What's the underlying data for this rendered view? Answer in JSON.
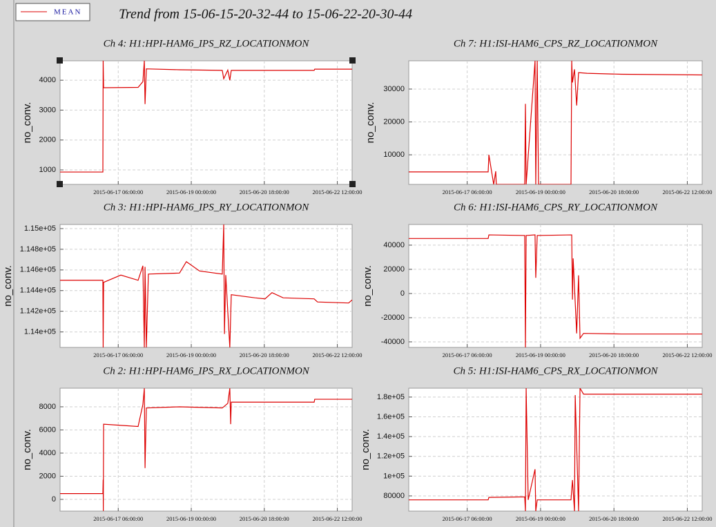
{
  "title": "Trend from 15-06-15-20-32-44 to 15-06-22-20-30-44",
  "legend": "MEAN",
  "chart_data": [
    {
      "type": "line",
      "title": "Ch 4: H1:HPI-HAM6_IPS_RZ_LOCATIONMON",
      "ylabel": "no_conv.",
      "color": "#dd0000",
      "grid": true,
      "xlim": [
        "2015-06-15 20:32:44",
        "2015-06-22 20:30:44"
      ],
      "xticks": [
        "2015-06-17 06:00:00",
        "2015-06-19 00:00:00",
        "2015-06-20 18:00:00",
        "2015-06-22 12:00:00"
      ],
      "ylim": [
        515,
        4650
      ],
      "yticks": [
        1000,
        2000,
        3000,
        4000
      ],
      "x": [
        "2015-06-15 20:33:00",
        "2015-06-16 21:10:00",
        "2015-06-16 21:20:00",
        "2015-06-16 21:35:00",
        "2015-06-17 17:25:00",
        "2015-06-17 20:10:00",
        "2015-06-17 21:00:00",
        "2015-06-17 21:25:00",
        "2015-06-17 22:10:00",
        "2015-06-18 17:15:00",
        "2015-06-19 17:50:00",
        "2015-06-19 18:40:00",
        "2015-06-19 21:00:00",
        "2015-06-19 22:10:00",
        "2015-06-19 23:00:00",
        "2015-06-21 22:40:00",
        "2015-06-21 23:00:00",
        "2015-06-22 20:30:00"
      ],
      "values": [
        930,
        930,
        4650,
        3750,
        3760,
        3950,
        4650,
        3200,
        4380,
        4350,
        4330,
        4050,
        4340,
        4000,
        4330,
        4330,
        4370,
        4370
      ]
    },
    {
      "type": "line",
      "title": "Ch 7: H1:ISI-HAM6_CPS_RZ_LOCATIONMON",
      "ylabel": "no_conv.",
      "color": "#dd0000",
      "grid": true,
      "xlim": [
        "2015-06-15 20:32:44",
        "2015-06-22 20:30:44"
      ],
      "xticks": [
        "2015-06-17 06:00:00",
        "2015-06-19 00:00:00",
        "2015-06-20 18:00:00",
        "2015-06-22 12:00:00"
      ],
      "ylim": [
        1000,
        38600
      ],
      "yticks": [
        10000,
        20000,
        30000
      ],
      "x": [
        "2015-06-15 20:33:00",
        "2015-06-17 18:00:00",
        "2015-06-17 18:25:00",
        "2015-06-17 21:10:00",
        "2015-06-17 22:20:00",
        "2015-06-17 22:40:00",
        "2015-06-18 14:55:00",
        "2015-06-18 15:20:00",
        "2015-06-18 15:45:00",
        "2015-06-18 20:50:00",
        "2015-06-18 21:15:00",
        "2015-06-18 22:05:00",
        "2015-06-18 22:50:00",
        "2015-06-19 17:25:00",
        "2015-06-19 17:50:00",
        "2015-06-19 18:15:00",
        "2015-06-19 19:25:00",
        "2015-06-19 20:40:00",
        "2015-06-19 21:45:00",
        "2015-06-20 02:35:00",
        "2015-06-20 22:20:00",
        "2015-06-22 20:30:00"
      ],
      "values": [
        4800,
        4800,
        10000,
        1000,
        5000,
        1000,
        1000,
        25500,
        1000,
        38600,
        1000,
        38600,
        1000,
        1000,
        38600,
        32000,
        36000,
        25000,
        35000,
        34800,
        34500,
        34300
      ]
    },
    {
      "type": "line",
      "title": "Ch 3: H1:HPI-HAM6_IPS_RY_LOCATIONMON",
      "ylabel": "no_conv.",
      "color": "#dd0000",
      "grid": true,
      "xlim": [
        "2015-06-15 20:32:44",
        "2015-06-22 20:30:44"
      ],
      "xticks": [
        "2015-06-17 06:00:00",
        "2015-06-19 00:00:00",
        "2015-06-20 18:00:00",
        "2015-06-22 12:00:00"
      ],
      "ylim": [
        113850,
        115040
      ],
      "yticks": [
        {
          "value": 114000,
          "label": "1.14e+05"
        },
        {
          "value": 114200,
          "label": "1.142e+05"
        },
        {
          "value": 114400,
          "label": "1.144e+05"
        },
        {
          "value": 114600,
          "label": "1.146e+05"
        },
        {
          "value": 114800,
          "label": "1.148e+05"
        },
        {
          "value": 115000,
          "label": "1.15e+05"
        }
      ],
      "x": [
        "2015-06-15 20:33:00",
        "2015-06-16 21:10:00",
        "2015-06-16 21:20:00",
        "2015-06-16 21:35:00",
        "2015-06-17 07:30:00",
        "2015-06-17 17:25:00",
        "2015-06-17 20:10:00",
        "2015-06-17 21:00:00",
        "2015-06-17 21:25:00",
        "2015-06-17 22:10:00",
        "2015-06-17 23:20:00",
        "2015-06-18 17:15:00",
        "2015-06-18 21:10:00",
        "2015-06-19 04:45:00",
        "2015-06-19 17:50:00",
        "2015-06-19 18:40:00",
        "2015-06-19 19:05:00",
        "2015-06-19 19:50:00",
        "2015-06-19 22:10:00",
        "2015-06-19 23:00:00",
        "2015-06-20 12:35:00",
        "2015-06-20 18:25:00",
        "2015-06-20 22:25:00",
        "2015-06-21 04:50:00",
        "2015-06-21 22:40:00",
        "2015-06-22 00:35:00",
        "2015-06-22 18:30:00",
        "2015-06-22 20:30:00"
      ],
      "values": [
        114500,
        114500,
        113850,
        114480,
        114550,
        114500,
        114640,
        113850,
        114630,
        113850,
        114560,
        114570,
        114680,
        114590,
        114560,
        115040,
        113980,
        114550,
        113850,
        114360,
        114330,
        114320,
        114380,
        114330,
        114320,
        114290,
        114280,
        114310
      ]
    },
    {
      "type": "line",
      "title": "Ch 6: H1:ISI-HAM6_CPS_RY_LOCATIONMON",
      "ylabel": "no_conv.",
      "color": "#dd0000",
      "grid": true,
      "xlim": [
        "2015-06-15 20:32:44",
        "2015-06-22 20:30:44"
      ],
      "xticks": [
        "2015-06-17 06:00:00",
        "2015-06-19 00:00:00",
        "2015-06-20 18:00:00",
        "2015-06-22 12:00:00"
      ],
      "ylim": [
        -44600,
        57100
      ],
      "yticks": [
        -40000,
        -20000,
        0,
        20000,
        40000
      ],
      "x": [
        "2015-06-15 20:33:00",
        "2015-06-17 18:00:00",
        "2015-06-17 18:25:00",
        "2015-06-18 14:55:00",
        "2015-06-18 15:20:00",
        "2015-06-18 15:45:00",
        "2015-06-18 20:50:00",
        "2015-06-18 21:15:00",
        "2015-06-18 22:05:00",
        "2015-06-19 17:50:00",
        "2015-06-19 18:15:00",
        "2015-06-19 18:40:00",
        "2015-06-19 19:25:00",
        "2015-06-19 20:40:00",
        "2015-06-19 21:45:00",
        "2015-06-19 22:35:00",
        "2015-06-20 00:35:00",
        "2015-06-20 22:20:00",
        "2015-06-22 20:30:00"
      ],
      "values": [
        45500,
        45500,
        48500,
        48000,
        -44600,
        48000,
        48500,
        13000,
        48000,
        48500,
        -5000,
        29000,
        5000,
        -33000,
        15000,
        -37000,
        -33000,
        -33500,
        -33500
      ]
    },
    {
      "type": "line",
      "title": "Ch 2: H1:HPI-HAM6_IPS_RX_LOCATIONMON",
      "ylabel": "no_conv.",
      "color": "#dd0000",
      "grid": true,
      "xlim": [
        "2015-06-15 20:32:44",
        "2015-06-22 20:30:44"
      ],
      "xticks": [
        "2015-06-17 06:00:00",
        "2015-06-19 00:00:00",
        "2015-06-20 18:00:00",
        "2015-06-22 12:00:00"
      ],
      "ylim": [
        -1015,
        9610
      ],
      "yticks": [
        0,
        2000,
        4000,
        6000,
        8000
      ],
      "x": [
        "2015-06-15 20:33:00",
        "2015-06-16 21:10:00",
        "2015-06-16 21:20:00",
        "2015-06-16 21:25:00",
        "2015-06-16 21:35:00",
        "2015-06-17 17:25:00",
        "2015-06-17 20:10:00",
        "2015-06-17 21:00:00",
        "2015-06-17 21:25:00",
        "2015-06-17 22:10:00",
        "2015-06-18 17:15:00",
        "2015-06-19 17:50:00",
        "2015-06-19 21:00:00",
        "2015-06-19 22:10:00",
        "2015-06-19 22:40:00",
        "2015-06-19 23:00:00",
        "2015-06-21 22:40:00",
        "2015-06-21 23:00:00",
        "2015-06-22 20:30:00"
      ],
      "values": [
        500,
        500,
        1700,
        -1000,
        6500,
        6300,
        8200,
        9600,
        2700,
        7900,
        8000,
        7900,
        8300,
        9600,
        6500,
        8400,
        8400,
        8650,
        8650
      ]
    },
    {
      "type": "line",
      "title": "Ch 5: H1:ISI-HAM6_CPS_RX_LOCATIONMON",
      "ylabel": "no_conv.",
      "color": "#dd0000",
      "grid": true,
      "xlim": [
        "2015-06-15 20:32:44",
        "2015-06-22 20:30:44"
      ],
      "xticks": [
        "2015-06-17 06:00:00",
        "2015-06-19 00:00:00",
        "2015-06-20 18:00:00",
        "2015-06-22 12:00:00"
      ],
      "ylim": [
        64600,
        189000
      ],
      "yticks": [
        80000,
        {
          "value": 100000,
          "label": "1e+05"
        },
        {
          "value": 120000,
          "label": "1.2e+05"
        },
        {
          "value": 140000,
          "label": "1.4e+05"
        },
        {
          "value": 160000,
          "label": "1.6e+05"
        },
        {
          "value": 180000,
          "label": "1.8e+05"
        }
      ],
      "x": [
        "2015-06-15 20:33:00",
        "2015-06-17 18:00:00",
        "2015-06-17 18:25:00",
        "2015-06-18 14:55:00",
        "2015-06-18 15:20:00",
        "2015-06-18 15:45:00",
        "2015-06-18 16:55:00",
        "2015-06-18 20:50:00",
        "2015-06-18 21:15:00",
        "2015-06-18 22:05:00",
        "2015-06-19 17:25:00",
        "2015-06-19 18:15:00",
        "2015-06-19 19:25:00",
        "2015-06-19 19:50:00",
        "2015-06-19 21:45:00",
        "2015-06-19 22:35:00",
        "2015-06-20 00:35:00",
        "2015-06-22 20:30:00"
      ],
      "values": [
        76000,
        76000,
        78500,
        79000,
        64600,
        189000,
        76000,
        107000,
        64600,
        76000,
        76000,
        96000,
        64600,
        182000,
        64600,
        189000,
        183000,
        183000
      ]
    }
  ]
}
